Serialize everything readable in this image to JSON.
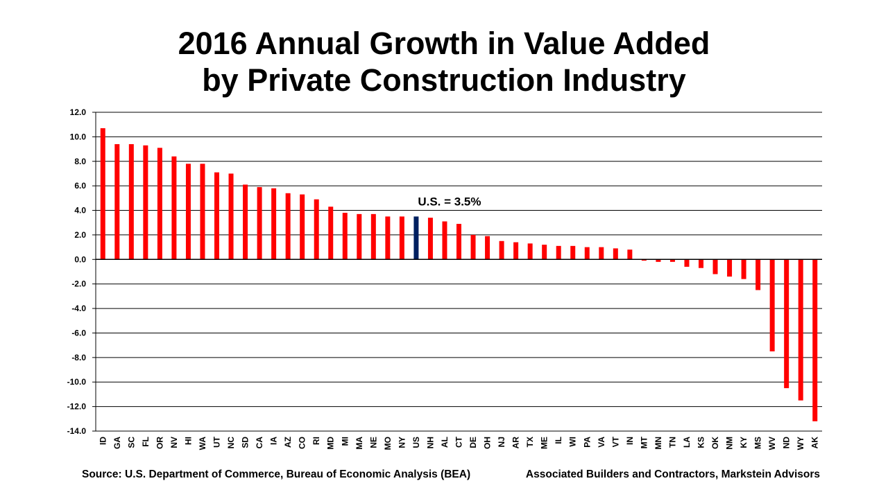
{
  "title_line1": "2016 Annual Growth in Value Added",
  "title_line2": "by Private Construction Industry",
  "footer_left": "Source: U.S. Department of Commerce, Bureau of Economic Analysis (BEA)",
  "footer_right": "Associated Builders and Contractors, Markstein Advisors",
  "colors": {
    "bar": "#ff0000",
    "highlight": "#002060",
    "grid": "#000000"
  },
  "chart_data": {
    "type": "bar",
    "title": "2016 Annual Growth in Value Added by Private Construction Industry",
    "xlabel": "",
    "ylabel": "",
    "ylim": [
      -14,
      12
    ],
    "yticks": [
      "12.0",
      "10.0",
      "8.0",
      "6.0",
      "4.0",
      "2.0",
      "0.0",
      "-2.0",
      "-4.0",
      "-6.0",
      "-8.0",
      "-10.0",
      "-12.0",
      "-14.0"
    ],
    "grid": true,
    "categories": [
      "ID",
      "GA",
      "SC",
      "FL",
      "OR",
      "NV",
      "HI",
      "WA",
      "UT",
      "NC",
      "SD",
      "CA",
      "IA",
      "AZ",
      "CO",
      "RI",
      "MD",
      "MI",
      "MA",
      "NE",
      "MO",
      "NY",
      "US",
      "NH",
      "AL",
      "CT",
      "DE",
      "OH",
      "NJ",
      "AR",
      "TX",
      "ME",
      "IL",
      "WI",
      "PA",
      "VA",
      "VT",
      "IN",
      "MT",
      "MN",
      "TN",
      "LA",
      "KS",
      "OK",
      "NM",
      "KY",
      "MS",
      "WV",
      "ND",
      "WY",
      "AK"
    ],
    "values": [
      10.7,
      9.4,
      9.4,
      9.3,
      9.1,
      8.4,
      7.8,
      7.8,
      7.1,
      7.0,
      6.1,
      5.9,
      5.8,
      5.4,
      5.3,
      4.9,
      4.3,
      3.8,
      3.7,
      3.7,
      3.5,
      3.5,
      3.5,
      3.4,
      3.1,
      2.9,
      2.0,
      1.9,
      1.5,
      1.4,
      1.3,
      1.2,
      1.1,
      1.1,
      1.0,
      1.0,
      0.9,
      0.8,
      -0.1,
      -0.2,
      -0.2,
      -0.6,
      -0.7,
      -1.2,
      -1.4,
      -1.6,
      -2.5,
      -7.5,
      -10.5,
      -11.5,
      -13.2
    ],
    "highlight": "US",
    "annotation": "U.S. = 3.5%"
  }
}
